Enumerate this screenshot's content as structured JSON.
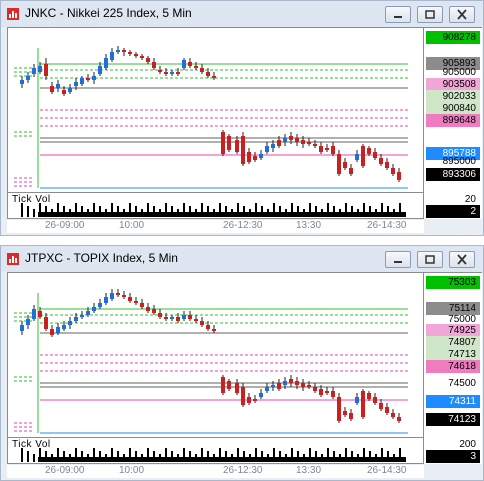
{
  "windows": [
    {
      "title": "JNKC - Nikkei 225 Index, 5 Min",
      "price_labels": [
        {
          "text": "908278",
          "bg": "#00c000",
          "color": "#000000",
          "kind": "boxed"
        },
        {
          "text": "905893",
          "bg": "#8c8c8c",
          "color": "#000000",
          "kind": "boxed"
        },
        {
          "text": "905000",
          "bg": "",
          "color": "#000000",
          "kind": "plain"
        },
        {
          "text": "903508",
          "bg": "#f2a6d8",
          "color": "#000000",
          "kind": "boxed"
        },
        {
          "text": "902033",
          "bg": "#cfe6c8",
          "color": "#000000",
          "kind": "boxed"
        },
        {
          "text": "900840",
          "bg": "#cfe6c8",
          "color": "#000000",
          "kind": "boxed"
        },
        {
          "text": "899648",
          "bg": "#f07cc0",
          "color": "#000000",
          "kind": "boxed"
        },
        {
          "text": "895788",
          "bg": "#1e8cff",
          "color": "#ffffff",
          "kind": "boxed"
        },
        {
          "text": "895000",
          "bg": "",
          "color": "#000000",
          "kind": "plain"
        },
        {
          "text": "893306",
          "bg": "#000000",
          "color": "#ffffff",
          "kind": "boxed"
        }
      ],
      "volume": {
        "label": "Tick Vol",
        "scale": "20",
        "current": "2"
      },
      "time_labels": [
        "26-09:00",
        "10:00",
        "26-12:30",
        "13:30",
        "26-14:30"
      ]
    },
    {
      "title": "JTPXC - TOPIX Index, 5 Min",
      "price_labels": [
        {
          "text": "75303",
          "bg": "#00c000",
          "color": "#000000",
          "kind": "boxed"
        },
        {
          "text": "75114",
          "bg": "#8c8c8c",
          "color": "#000000",
          "kind": "boxed"
        },
        {
          "text": "75000",
          "bg": "",
          "color": "#000000",
          "kind": "plain"
        },
        {
          "text": "74925",
          "bg": "#f2a6d8",
          "color": "#000000",
          "kind": "boxed"
        },
        {
          "text": "74807",
          "bg": "#cfe6c8",
          "color": "#000000",
          "kind": "boxed"
        },
        {
          "text": "74713",
          "bg": "#cfe6c8",
          "color": "#000000",
          "kind": "boxed"
        },
        {
          "text": "74618",
          "bg": "#f07cc0",
          "color": "#000000",
          "kind": "boxed"
        },
        {
          "text": "74500",
          "bg": "",
          "color": "#000000",
          "kind": "plain"
        },
        {
          "text": "74311",
          "bg": "#1e8cff",
          "color": "#ffffff",
          "kind": "boxed"
        },
        {
          "text": "74123",
          "bg": "#000000",
          "color": "#ffffff",
          "kind": "boxed"
        }
      ],
      "volume": {
        "label": "Tick Vol",
        "scale": "200",
        "current": "3"
      },
      "time_labels": [
        "26-09:00",
        "10:00",
        "26-12:30",
        "13:30",
        "26-14:30"
      ]
    }
  ],
  "colors": {
    "bull": "#1e6fd9",
    "bear": "#cc2020",
    "green_level": "#00c000",
    "pink_level": "#e64aa8",
    "blue_level": "#1e8cff"
  }
}
